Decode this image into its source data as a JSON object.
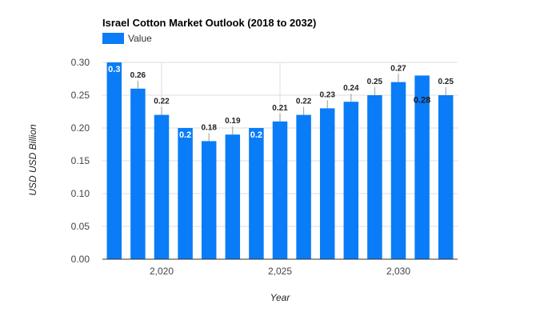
{
  "chart_data": {
    "type": "bar",
    "title": "Israel Cotton Market Outlook (2018 to 2032)",
    "xlabel": "Year",
    "ylabel": "USD USD Billion",
    "legend": {
      "label": "Value",
      "position": "top-left"
    },
    "x": [
      2018,
      2019,
      2020,
      2021,
      2022,
      2023,
      2024,
      2025,
      2026,
      2027,
      2028,
      2029,
      2030,
      2031,
      2032
    ],
    "x_ticks": [
      "2,020",
      "2,025",
      "2,030"
    ],
    "x_tick_values": [
      2020,
      2025,
      2030
    ],
    "y_ticks": [
      "0.00",
      "0.05",
      "0.10",
      "0.15",
      "0.20",
      "0.25",
      "0.30"
    ],
    "ylim": [
      0,
      0.3
    ],
    "grid": true,
    "colors": {
      "bar": "#0a7cf7",
      "grid": "#dddddd",
      "axis": "#333333"
    },
    "series": [
      {
        "name": "Value",
        "values": [
          0.3,
          0.26,
          0.22,
          0.2,
          0.18,
          0.19,
          0.2,
          0.21,
          0.22,
          0.23,
          0.24,
          0.25,
          0.27,
          0.28,
          0.25
        ],
        "labels": [
          "0.3",
          "0.26",
          "0.22",
          "0.2",
          "0.18",
          "0.19",
          "0.2",
          "0.21",
          "0.22",
          "0.23",
          "0.24",
          "0.25",
          "0.27",
          "0.28",
          "0.25"
        ]
      }
    ]
  }
}
